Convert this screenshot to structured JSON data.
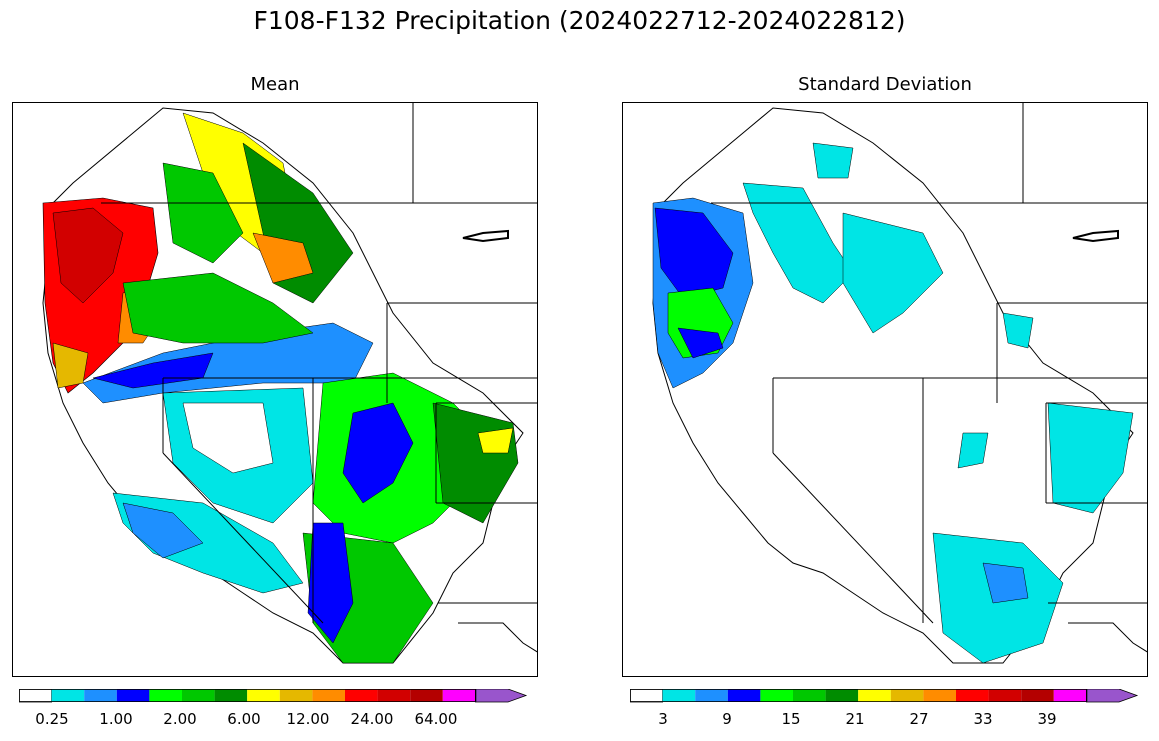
{
  "figure": {
    "title": "F108-F132 Precipitation (2024022712-2024022812)"
  },
  "panels": {
    "mean": {
      "title": "Mean"
    },
    "sd": {
      "title": "Standard Deviation"
    }
  },
  "colorbars": {
    "colors": [
      "#ffffff",
      "#00e5e5",
      "#1e90ff",
      "#0000ff",
      "#00ff00",
      "#00c800",
      "#008c00",
      "#ffff00",
      "#e5b800",
      "#ff8c00",
      "#ff0000",
      "#d20000",
      "#b40000",
      "#ff00ff",
      "#9955cc"
    ],
    "mean_ticks": [
      "0.25",
      "1.00",
      "2.00",
      "6.00",
      "12.00",
      "24.00",
      "64.00"
    ],
    "sd_ticks": [
      "3",
      "9",
      "15",
      "21",
      "27",
      "33",
      "39"
    ]
  },
  "legend_regions": {
    "mean": [
      {
        "color": "#ff0000"
      },
      {
        "color": "#ffff00"
      },
      {
        "color": "#008c00"
      },
      {
        "color": "#0000ff"
      },
      {
        "color": "#00ff00"
      },
      {
        "color": "#00e5e5"
      }
    ],
    "sd": [
      {
        "color": "#00e5e5"
      },
      {
        "color": "#1e90ff"
      },
      {
        "color": "#0000ff"
      },
      {
        "color": "#00ff00"
      }
    ]
  }
}
